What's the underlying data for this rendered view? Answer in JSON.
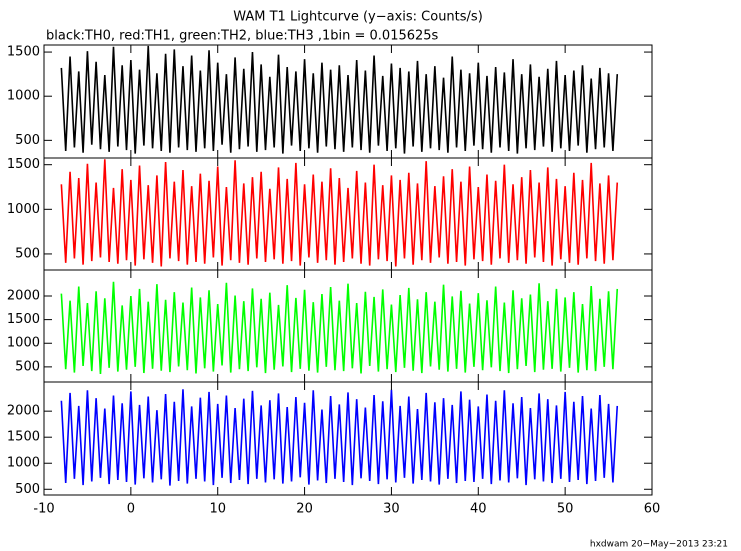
{
  "chart_data": {
    "type": "line",
    "title": "WAM T1 Lightcurve (y−axis: Counts/s)",
    "subtitle": "black:TH0, red:TH1, green:TH2, blue:TH3 ,1bin = 0.015625s",
    "footer": "hxdwam 20−May−2013 23:21",
    "xlim": [
      -10,
      60
    ],
    "xticks": [
      -10,
      0,
      10,
      20,
      30,
      40,
      50,
      60
    ],
    "x": [
      -8,
      -7.5,
      -7,
      -6.5,
      -6,
      -5.5,
      -5,
      -4.5,
      -4,
      -3.5,
      -3,
      -2.5,
      -2,
      -1.5,
      -1,
      -0.5,
      0,
      0.5,
      1,
      1.5,
      2,
      2.5,
      3,
      3.5,
      4,
      4.5,
      5,
      5.5,
      6,
      6.5,
      7,
      7.5,
      8,
      8.5,
      9,
      9.5,
      10,
      10.5,
      11,
      11.5,
      12,
      12.5,
      13,
      13.5,
      14,
      14.5,
      15,
      15.5,
      16,
      16.5,
      17,
      17.5,
      18,
      18.5,
      19,
      19.5,
      20,
      20.5,
      21,
      21.5,
      22,
      22.5,
      23,
      23.5,
      24,
      24.5,
      25,
      25.5,
      26,
      26.5,
      27,
      27.5,
      28,
      28.5,
      29,
      29.5,
      30,
      30.5,
      31,
      31.5,
      32,
      32.5,
      33,
      33.5,
      34,
      34.5,
      35,
      35.5,
      36,
      36.5,
      37,
      37.5,
      38,
      38.5,
      39,
      39.5,
      40,
      40.5,
      41,
      41.5,
      42,
      42.5,
      43,
      43.5,
      44,
      44.5,
      45,
      45.5,
      46,
      46.5,
      47,
      47.5,
      48,
      48.5,
      49,
      49.5,
      50,
      50.5,
      51,
      51.5,
      52,
      52.5,
      53,
      53.5,
      54,
      54.5,
      55,
      55.5,
      56
    ],
    "panels": [
      {
        "color": "#000000",
        "ylim": [
          300,
          1580
        ],
        "yticks": [
          500,
          1000,
          1500
        ],
        "values": [
          1320,
          380,
          1450,
          420,
          1280,
          360,
          1510,
          450,
          1390,
          400,
          1240,
          370,
          1560,
          430,
          1350,
          390,
          1410,
          350,
          1300,
          440,
          1570,
          410,
          1260,
          380,
          1480,
          360,
          1530,
          420,
          1340,
          390,
          1460,
          370,
          1290,
          410,
          1520,
          380,
          1380,
          450,
          1250,
          360,
          1440,
          400,
          1310,
          430,
          1500,
          370,
          1360,
          390,
          1220,
          420,
          1470,
          350,
          1330,
          440,
          1280,
          380,
          1420,
          410,
          1260,
          360,
          1380,
          430,
          1300,
          400,
          1350,
          370,
          1240,
          420,
          1410,
          390,
          1290,
          360,
          1460,
          440,
          1230,
          380,
          1370,
          410,
          1320,
          350,
          1280,
          430,
          1400,
          370,
          1250,
          410,
          1340,
          390,
          1210,
          360,
          1450,
          420,
          1300,
          380,
          1260,
          440,
          1380,
          400,
          1230,
          360,
          1330,
          420,
          1270,
          380,
          1420,
          350,
          1250,
          410,
          1360,
          390,
          1220,
          430,
          1310,
          370,
          1400,
          410,
          1240,
          380,
          1290,
          440,
          1350,
          360,
          1200,
          400,
          1320,
          420,
          1260,
          380,
          1250
        ]
      },
      {
        "color": "#ff0000",
        "ylim": [
          320,
          1575
        ],
        "yticks": [
          500,
          1000,
          1500
        ],
        "values": [
          1280,
          400,
          1420,
          450,
          1350,
          380,
          1510,
          420,
          1300,
          460,
          1560,
          410,
          1240,
          390,
          1450,
          430,
          1330,
          370,
          1490,
          440,
          1270,
          400,
          1380,
          360,
          1530,
          450,
          1310,
          420,
          1440,
          380,
          1260,
          410,
          1400,
          390,
          1320,
          460,
          1480,
          370,
          1250,
          430,
          1550,
          400,
          1290,
          380,
          1360,
          450,
          1420,
          410,
          1230,
          440,
          1470,
          390,
          1340,
          420,
          1520,
          370,
          1280,
          460,
          1390,
          400,
          1310,
          430,
          1460,
          380,
          1350,
          410,
          1240,
          450,
          1430,
          390,
          1300,
          370,
          1500,
          440,
          1270,
          420,
          1380,
          360,
          1330,
          450,
          1410,
          380,
          1290,
          430,
          1540,
          400,
          1260,
          460,
          1370,
          390,
          1450,
          410,
          1310,
          370,
          1480,
          440,
          1250,
          420,
          1390,
          380,
          1320,
          450,
          1500,
          400,
          1280,
          430,
          1360,
          390,
          1440,
          460,
          1300,
          410,
          1470,
          370,
          1340,
          440,
          1260,
          400,
          1410,
          380,
          1330,
          450,
          1520,
          420,
          1290,
          390,
          1380,
          430,
          1300
        ]
      },
      {
        "color": "#00ff00",
        "ylim": [
          180,
          2550
        ],
        "yticks": [
          500,
          1000,
          1500,
          2000
        ],
        "values": [
          2050,
          450,
          1900,
          380,
          2200,
          520,
          1850,
          410,
          2100,
          350,
          1950,
          480,
          2300,
          400,
          1800,
          440,
          2000,
          500,
          2150,
          370,
          1880,
          460,
          2250,
          420,
          1920,
          390,
          2080,
          510,
          1860,
          430,
          2180,
          360,
          1970,
          470,
          2120,
          400,
          1830,
          530,
          2280,
          380,
          2010,
          450,
          1890,
          410,
          2160,
          490,
          1940,
          370,
          2070,
          440,
          1810,
          510,
          2230,
          390,
          1960,
          460,
          2130,
          420,
          1870,
          380,
          2040,
          500,
          2190,
          430,
          1900,
          410,
          2260,
          470,
          1850,
          360,
          2090,
          520,
          1980,
          400,
          2140,
          450,
          1820,
          390,
          2020,
          480,
          2170,
          420,
          1930,
          370,
          2080,
          510,
          1880,
          440,
          2240,
          400,
          1990,
          460,
          2110,
          380,
          1840,
          500,
          2060,
          430,
          1910,
          490,
          2200,
          410,
          1860,
          370,
          2120,
          450,
          1950,
          520,
          2030,
          390,
          2270,
          440,
          1890,
          460,
          2150,
          400,
          1970,
          480,
          2080,
          380,
          1830,
          430,
          2210,
          410,
          1940,
          500,
          2100,
          450,
          2150
        ]
      },
      {
        "color": "#0000ff",
        "ylim": [
          390,
          2560
        ],
        "yticks": [
          500,
          1000,
          1500,
          2000
        ],
        "values": [
          2200,
          620,
          2350,
          700,
          2100,
          580,
          2400,
          650,
          2250,
          720,
          2050,
          600,
          2300,
          680,
          2150,
          640,
          2380,
          590,
          2120,
          710,
          2280,
          630,
          2020,
          690,
          2330,
          570,
          2180,
          660,
          2420,
          610,
          2090,
          700,
          2260,
          650,
          2370,
          580,
          2140,
          720,
          2300,
          620,
          2060,
          680,
          2240,
          600,
          2390,
          700,
          2110,
          630,
          2210,
          690,
          2340,
          610,
          2080,
          650,
          2270,
          730,
          2160,
          590,
          2400,
          670,
          2030,
          620,
          2290,
          700,
          2130,
          640,
          2360,
          580,
          2230,
          710,
          2070,
          660,
          2310,
          600,
          2190,
          690,
          2410,
          630,
          2100,
          720,
          2280,
          610,
          2040,
          680,
          2350,
          650,
          2170,
          590,
          2250,
          700,
          2120,
          620,
          2380,
          660,
          2220,
          640,
          2090,
          700,
          2320,
          600,
          2200,
          670,
          2400,
          630,
          2150,
          710,
          2270,
          580,
          2060,
          690,
          2340,
          650,
          2230,
          620,
          2110,
          700,
          2370,
          640,
          2180,
          680,
          2290,
          600,
          2050,
          660,
          2310,
          720,
          2140,
          630,
          2100
        ]
      }
    ]
  }
}
